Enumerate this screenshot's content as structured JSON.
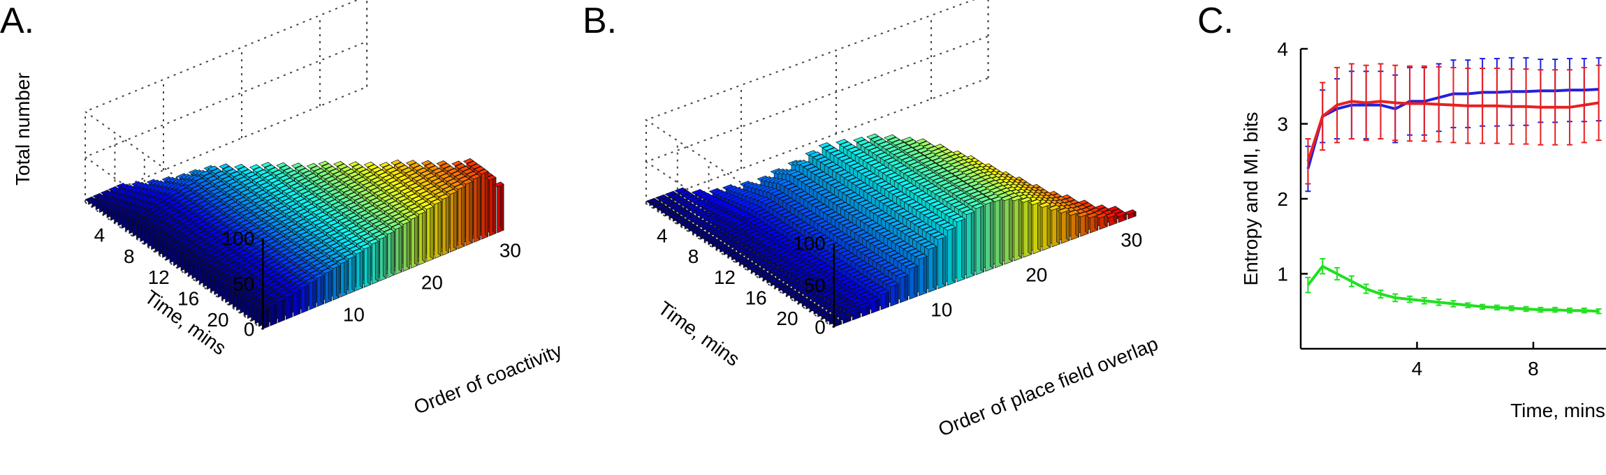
{
  "panels": {
    "a": {
      "label": "A."
    },
    "b": {
      "label": "B."
    },
    "c": {
      "label": "C."
    }
  },
  "chart_data": [
    {
      "type": "bar3d",
      "panel": "A.",
      "zlabel": "Total number",
      "ylabel": "Time, mins",
      "xlabel": "Order of coactivity",
      "z_ticks": [
        0,
        50,
        100
      ],
      "time_ticks": [
        4,
        8,
        12,
        16,
        20
      ],
      "order_ticks": [
        10,
        20,
        30
      ],
      "zlim": [
        0,
        100
      ],
      "time_range": [
        0,
        24
      ],
      "order_range": [
        0,
        36
      ],
      "colormap": "jet",
      "grid": true
    },
    {
      "type": "bar3d",
      "panel": "B.",
      "ylabel": "Time, mins",
      "xlabel": "Order of place field overlap",
      "z_ticks": [
        0,
        50,
        100
      ],
      "time_ticks": [
        4,
        8,
        12,
        16,
        20
      ],
      "order_ticks": [
        10,
        20,
        30
      ],
      "zlim": [
        0,
        100
      ],
      "time_range": [
        0,
        24
      ],
      "order_range": [
        0,
        36
      ],
      "colormap": "jet",
      "grid": true
    },
    {
      "type": "line",
      "panel": "C.",
      "xlabel": "Time, mins",
      "ylabel": "Entropy and MI, bits",
      "xlim": [
        0,
        10.5
      ],
      "ylim": [
        0,
        4
      ],
      "x_ticks": [
        4,
        8
      ],
      "y_ticks": [
        1,
        2,
        3,
        4
      ],
      "x": [
        0.25,
        0.75,
        1.25,
        1.75,
        2.25,
        2.75,
        3.25,
        3.75,
        4.25,
        4.75,
        5.25,
        5.75,
        6.25,
        6.75,
        7.25,
        7.75,
        8.25,
        8.75,
        9.25,
        9.75,
        10.25
      ],
      "series": [
        {
          "color": "#2020e0",
          "values": [
            2.4,
            3.1,
            3.2,
            3.25,
            3.25,
            3.25,
            3.2,
            3.3,
            3.3,
            3.35,
            3.4,
            3.4,
            3.42,
            3.42,
            3.43,
            3.43,
            3.44,
            3.44,
            3.45,
            3.45,
            3.46
          ],
          "err": [
            0.3,
            0.35,
            0.4,
            0.45,
            0.45,
            0.45,
            0.45,
            0.45,
            0.45,
            0.45,
            0.45,
            0.45,
            0.45,
            0.45,
            0.45,
            0.45,
            0.42,
            0.42,
            0.42,
            0.42,
            0.42
          ]
        },
        {
          "color": "#e82020",
          "values": [
            2.5,
            3.1,
            3.25,
            3.3,
            3.28,
            3.3,
            3.28,
            3.27,
            3.27,
            3.26,
            3.25,
            3.24,
            3.24,
            3.24,
            3.23,
            3.23,
            3.22,
            3.22,
            3.22,
            3.25,
            3.28
          ],
          "err": [
            0.3,
            0.45,
            0.5,
            0.5,
            0.5,
            0.5,
            0.5,
            0.5,
            0.5,
            0.5,
            0.5,
            0.5,
            0.5,
            0.5,
            0.5,
            0.5,
            0.5,
            0.5,
            0.5,
            0.5,
            0.5
          ]
        },
        {
          "color": "#20e020",
          "values": [
            0.85,
            1.1,
            1.0,
            0.9,
            0.8,
            0.73,
            0.68,
            0.66,
            0.64,
            0.62,
            0.6,
            0.58,
            0.56,
            0.55,
            0.54,
            0.53,
            0.52,
            0.52,
            0.51,
            0.51,
            0.5
          ],
          "err": [
            0.1,
            0.1,
            0.08,
            0.07,
            0.06,
            0.05,
            0.05,
            0.04,
            0.04,
            0.04,
            0.04,
            0.03,
            0.03,
            0.03,
            0.03,
            0.03,
            0.03,
            0.03,
            0.03,
            0.03,
            0.03
          ]
        }
      ]
    }
  ]
}
